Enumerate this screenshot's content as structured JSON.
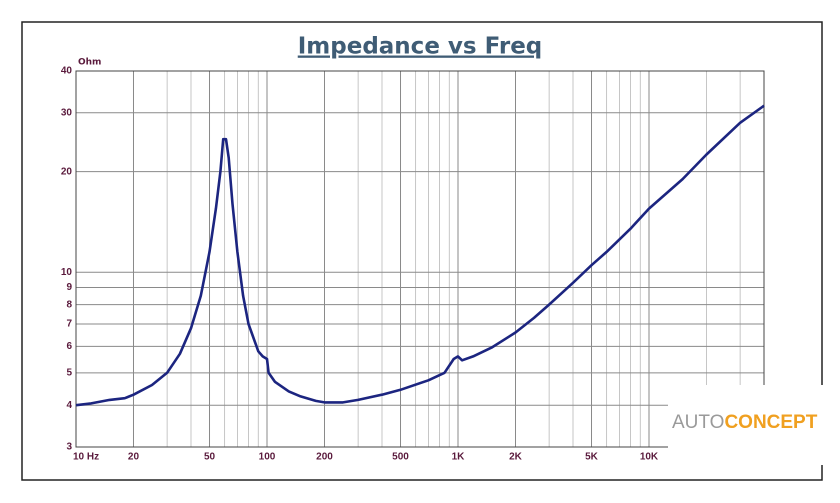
{
  "chart_data": {
    "type": "line",
    "title": "Impedance vs Freq",
    "ylabel": "Ohm",
    "x": [
      10,
      12,
      15,
      18,
      20,
      25,
      30,
      35,
      40,
      45,
      50,
      54,
      57,
      59,
      61,
      63,
      66,
      70,
      75,
      80,
      90,
      95,
      100,
      102,
      110,
      130,
      150,
      180,
      200,
      250,
      300,
      400,
      500,
      700,
      850,
      950,
      1000,
      1050,
      1200,
      1500,
      2000,
      2500,
      3000,
      4000,
      5000,
      6000,
      8000,
      10000,
      15000,
      20000,
      30000,
      40000
    ],
    "series": [
      {
        "color": "#1c2580",
        "values": [
          4.0,
          4.05,
          4.15,
          4.2,
          4.3,
          4.6,
          5.0,
          5.7,
          6.8,
          8.5,
          11.5,
          15.5,
          20,
          25,
          25,
          22,
          16,
          11.5,
          8.5,
          7,
          5.8,
          5.6,
          5.5,
          5.0,
          4.7,
          4.4,
          4.25,
          4.12,
          4.08,
          4.08,
          4.15,
          4.3,
          4.45,
          4.75,
          5.0,
          5.5,
          5.6,
          5.45,
          5.6,
          5.95,
          6.6,
          7.3,
          8.0,
          9.3,
          10.5,
          11.5,
          13.5,
          15.5,
          19,
          22.5,
          28,
          31.5
        ]
      }
    ],
    "xlog": true,
    "ylog": true,
    "xlim": [
      10,
      40000
    ],
    "ylim": [
      3,
      40
    ],
    "xticks": [
      {
        "value": 10,
        "label": "10 Hz"
      },
      20,
      50,
      100,
      200,
      500,
      {
        "value": 1000,
        "label": "1K"
      },
      {
        "value": 2000,
        "label": "2K"
      },
      {
        "value": 5000,
        "label": "5K"
      },
      {
        "value": 10000,
        "label": "10K"
      }
    ],
    "xminor": [
      30,
      40,
      60,
      70,
      80,
      90,
      300,
      400,
      600,
      700,
      800,
      900,
      3000,
      4000,
      6000,
      7000,
      8000,
      9000,
      20000,
      30000
    ],
    "yticks": [
      3,
      4,
      5,
      6,
      7,
      8,
      9,
      10,
      20,
      30,
      40
    ],
    "grid": true
  },
  "watermark": {
    "part1": "AUTO",
    "part2": "CONCEPT"
  }
}
